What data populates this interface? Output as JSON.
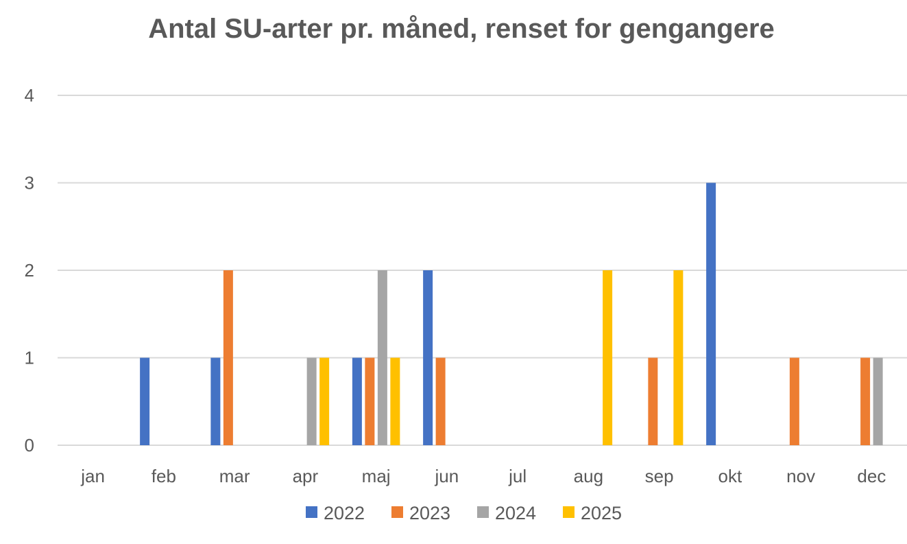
{
  "chart_data": {
    "type": "bar",
    "title": "Antal SU-arter pr. måned, renset for gengangere",
    "xlabel": "",
    "ylabel": "",
    "ylim": [
      0,
      4
    ],
    "yticks": [
      "0",
      "1",
      "2",
      "3",
      "4"
    ],
    "grid": true,
    "legend_position": "bottom",
    "categories": [
      "jan",
      "feb",
      "mar",
      "apr",
      "maj",
      "jun",
      "jul",
      "aug",
      "sep",
      "okt",
      "nov",
      "dec"
    ],
    "series": [
      {
        "name": "2022",
        "color": "#4472C4",
        "values": [
          0,
          1,
          1,
          0,
          1,
          2,
          0,
          0,
          0,
          3,
          0,
          0
        ]
      },
      {
        "name": "2023",
        "color": "#ED7D31",
        "values": [
          0,
          0,
          2,
          0,
          1,
          1,
          0,
          0,
          1,
          0,
          1,
          1
        ]
      },
      {
        "name": "2024",
        "color": "#A5A5A5",
        "values": [
          0,
          0,
          0,
          1,
          2,
          0,
          0,
          0,
          0,
          0,
          0,
          1
        ]
      },
      {
        "name": "2025",
        "color": "#FFC000",
        "values": [
          0,
          0,
          0,
          1,
          1,
          0,
          0,
          2,
          2,
          0,
          0,
          0
        ]
      }
    ]
  }
}
